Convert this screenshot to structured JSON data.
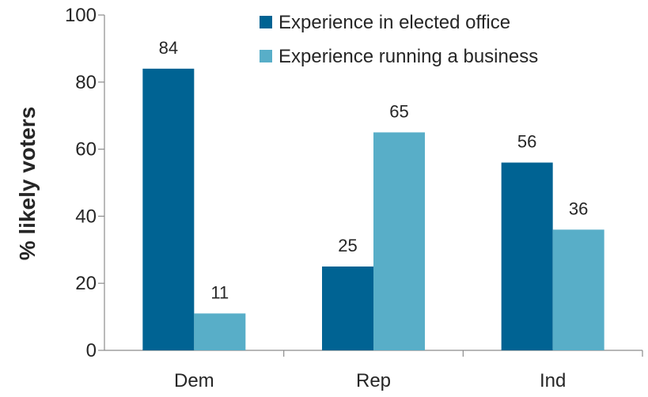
{
  "chart_data": {
    "type": "bar",
    "categories": [
      "Dem",
      "Rep",
      "Ind"
    ],
    "series": [
      {
        "name": "Experience in elected office",
        "values": [
          84,
          25,
          56
        ],
        "color": "#006393"
      },
      {
        "name": "Experience running a business",
        "values": [
          11,
          65,
          36
        ],
        "color": "#58aec8"
      }
    ],
    "title": "",
    "xlabel": "",
    "ylabel": "% likely voters",
    "ylim": [
      0,
      100
    ],
    "yticks": [
      0,
      20,
      40,
      60,
      80,
      100
    ],
    "grid": false,
    "legend_position": "top-right",
    "data_labels": true
  }
}
